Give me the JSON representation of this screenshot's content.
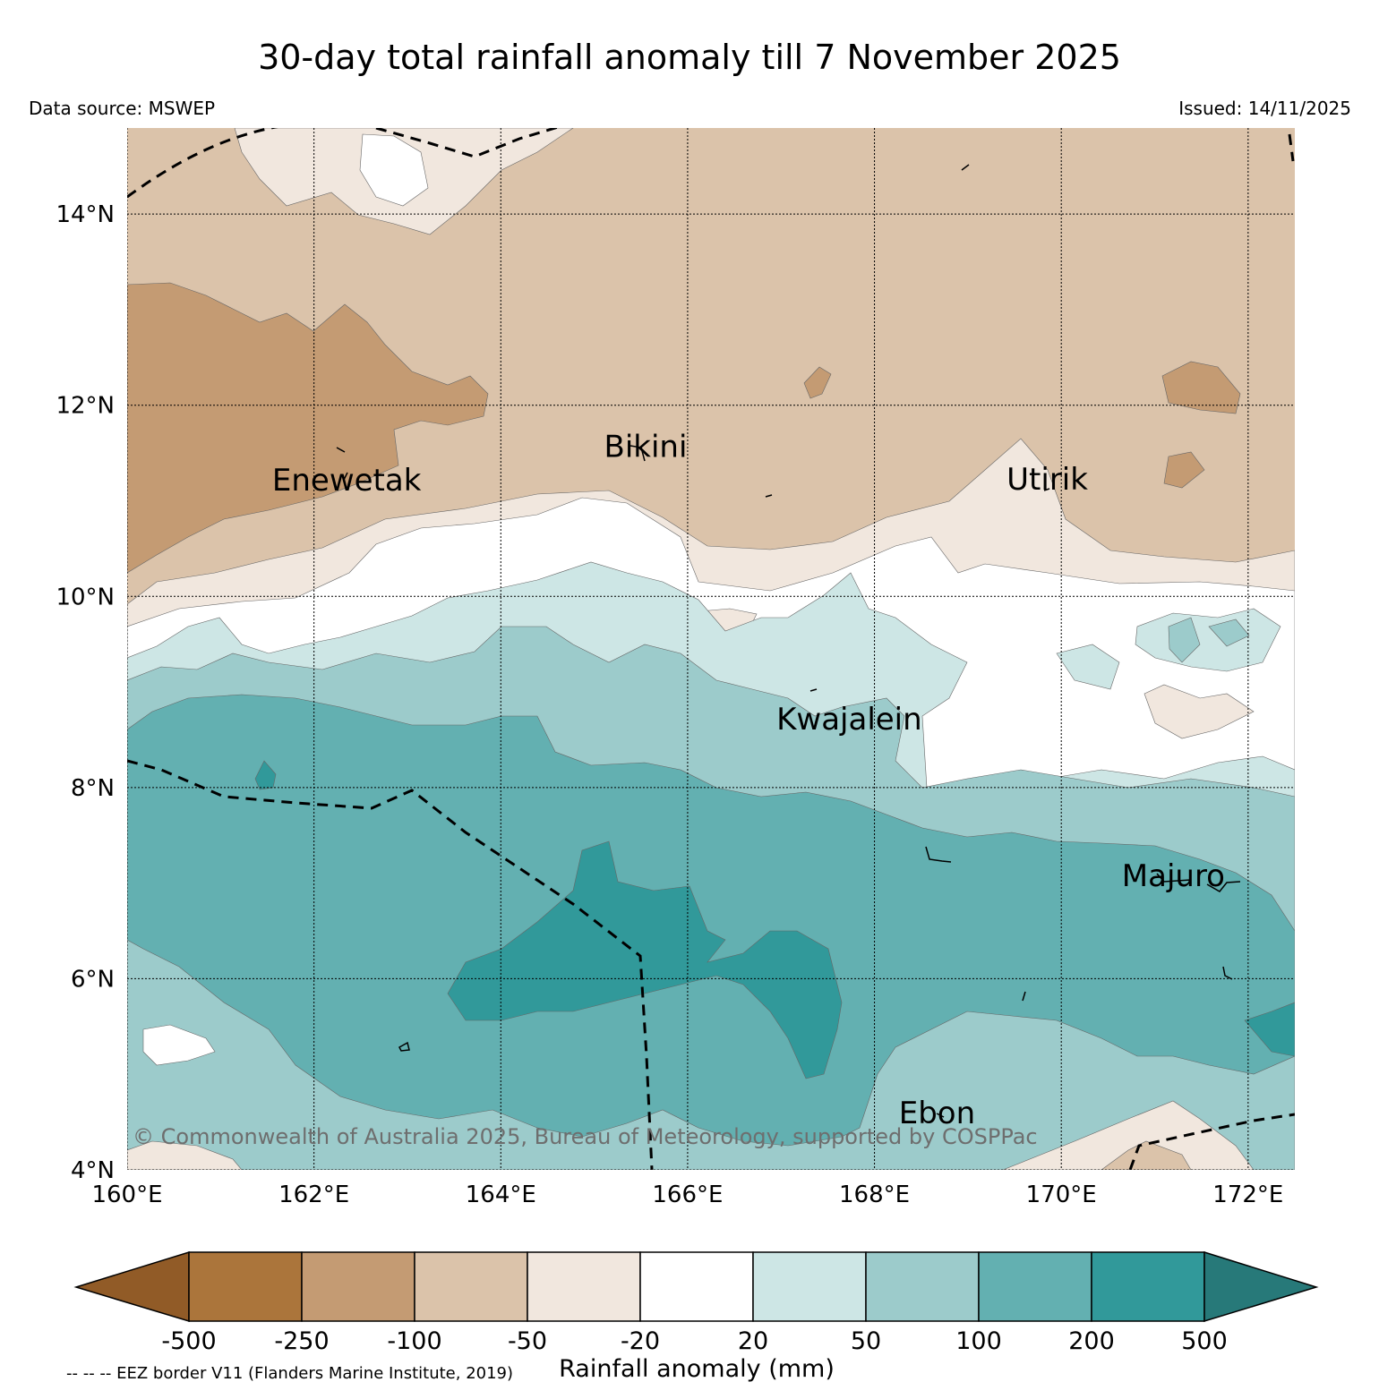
{
  "header": {
    "title": "30-day total rainfall anomaly till 7 November 2025",
    "data_source": "Data source: MSWEP",
    "issued": "Issued: 14/11/2025"
  },
  "map": {
    "lon_range": [
      160,
      172.5
    ],
    "lat_range": [
      4,
      14.9
    ],
    "lat_ticks": [
      {
        "value": 14,
        "label": "14°N"
      },
      {
        "value": 12,
        "label": "12°N"
      },
      {
        "value": 10,
        "label": "10°N"
      },
      {
        "value": 8,
        "label": "8°N"
      },
      {
        "value": 6,
        "label": "6°N"
      },
      {
        "value": 4,
        "label": "4°N"
      }
    ],
    "lon_ticks": [
      {
        "value": 160,
        "label": "160°E"
      },
      {
        "value": 162,
        "label": "162°E"
      },
      {
        "value": 164,
        "label": "164°E"
      },
      {
        "value": 166,
        "label": "166°E"
      },
      {
        "value": 168,
        "label": "168°E"
      },
      {
        "value": 170,
        "label": "170°E"
      },
      {
        "value": 172,
        "label": "172°E"
      }
    ],
    "places": [
      {
        "name": "Enewetak",
        "lon": 162.35,
        "lat": 11.22
      },
      {
        "name": "Bikini",
        "lon": 165.55,
        "lat": 11.57
      },
      {
        "name": "Utirik",
        "lon": 169.85,
        "lat": 11.23
      },
      {
        "name": "Kwajalein",
        "lon": 167.73,
        "lat": 8.72
      },
      {
        "name": "Majuro",
        "lon": 171.2,
        "lat": 7.08
      },
      {
        "name": "Ebon",
        "lon": 168.67,
        "lat": 4.6
      }
    ],
    "copyright": "© Commonwealth of Australia 2025, Bureau of Meteorology, supported by COSPPac"
  },
  "colorbar": {
    "title": "Rainfall anomaly (mm)",
    "colors": [
      "#915b27",
      "#ab753b",
      "#c49b73",
      "#dbc3aa",
      "#f1e7de",
      "#ffffff",
      "#cde6e5",
      "#9ccbcb",
      "#63b0b1",
      "#31999a",
      "#277979"
    ],
    "labels": [
      "-500",
      "-250",
      "-100",
      "-50",
      "-20",
      "20",
      "50",
      "100",
      "200",
      "500"
    ],
    "eez_note": "-- -- -- EEZ border V11 (Flanders Marine Institute, 2019)"
  }
}
